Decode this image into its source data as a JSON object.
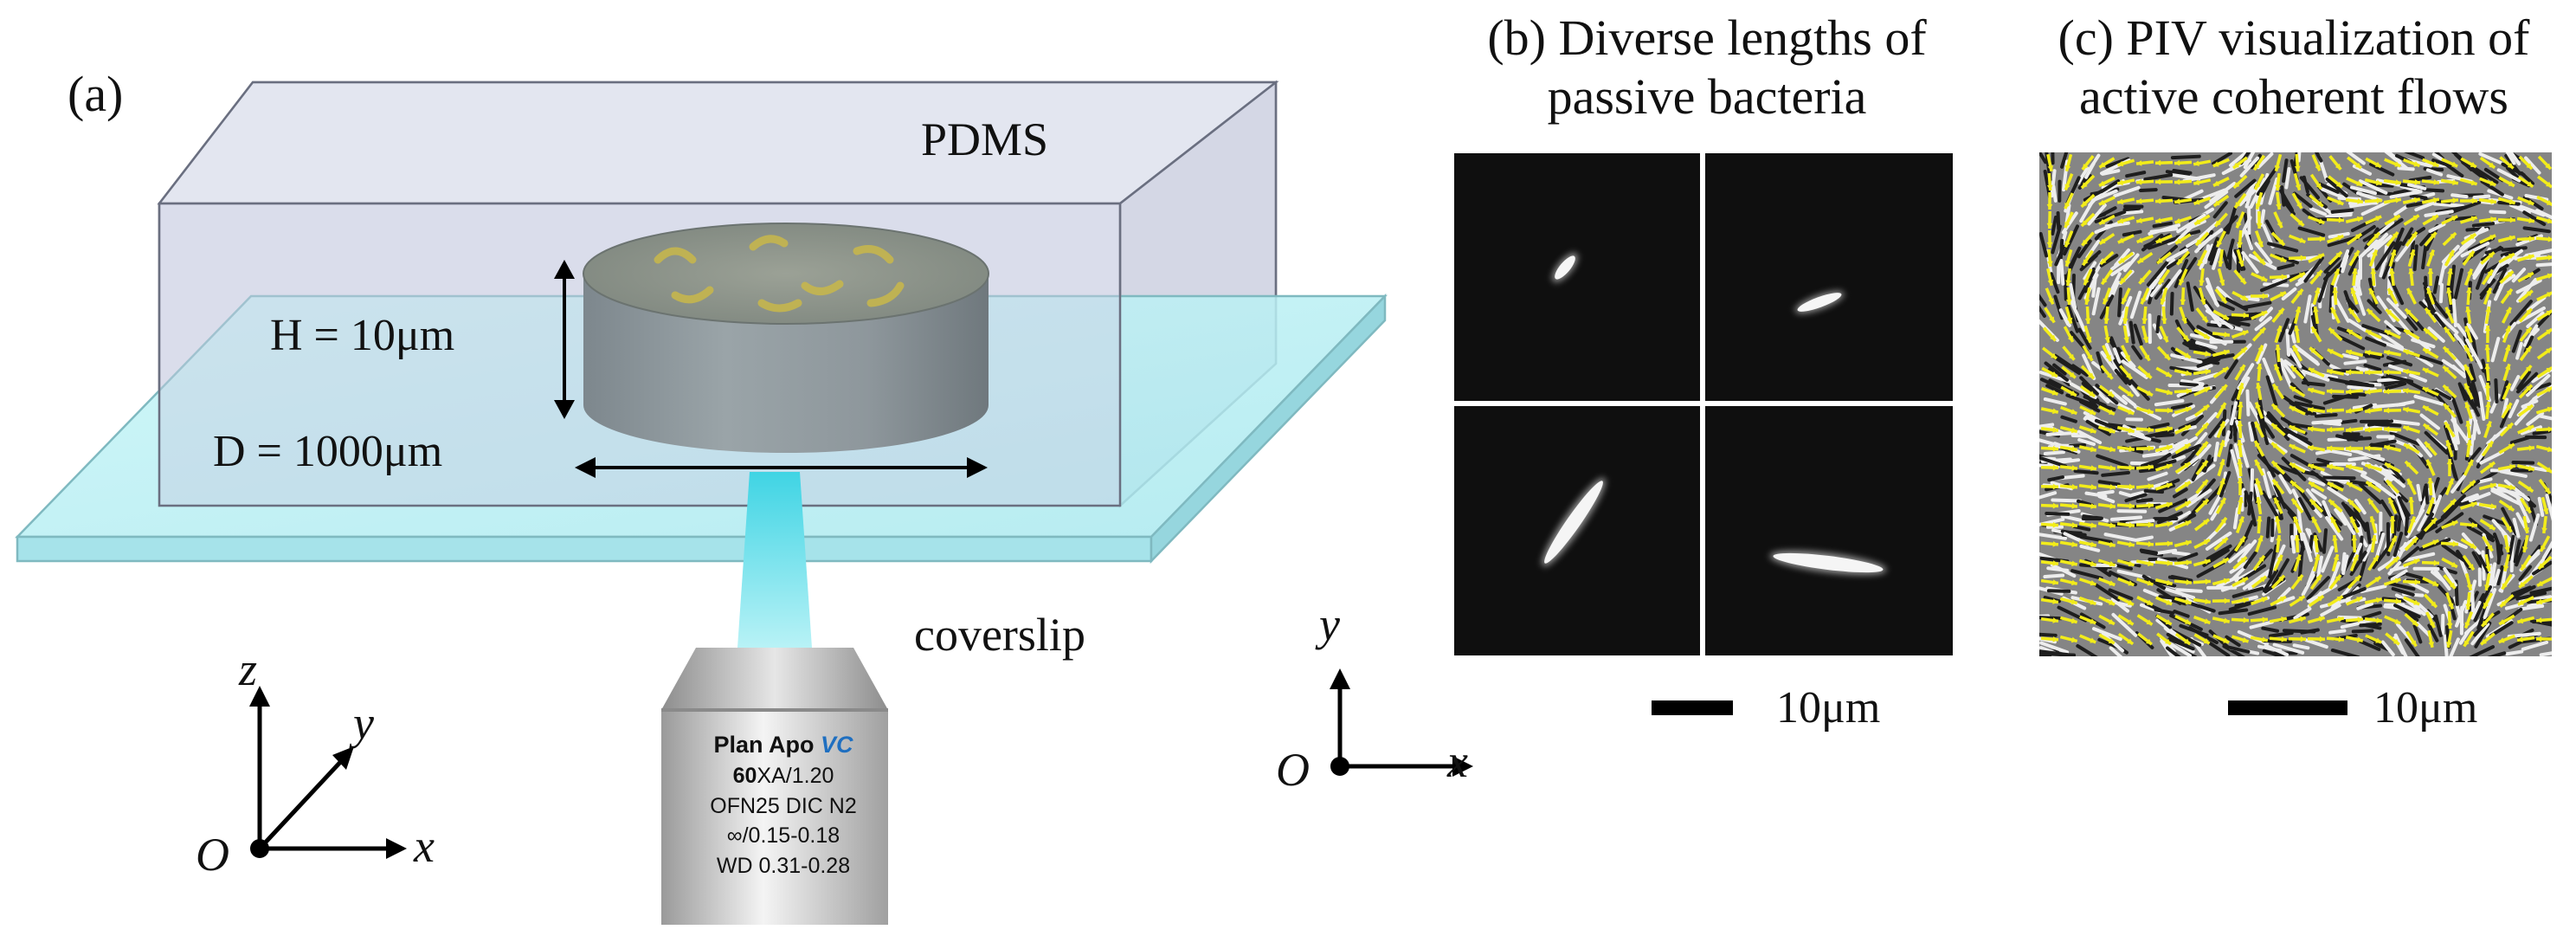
{
  "panel_a": {
    "label": "(a)",
    "pdms_label": "PDMS",
    "height_label": "H = 10μm",
    "diameter_label": "D = 1000μm",
    "coverslip_label": "coverslip",
    "axes": {
      "z": "z",
      "y": "y",
      "x": "x",
      "origin": "O"
    },
    "objective": {
      "line1_main": "Plan Apo ",
      "line1_accent": "VC",
      "line2_bold": "60",
      "line2_rest": "XA/1.20",
      "line3": "OFN25 DIC N2",
      "line4": "∞/0.15-0.18",
      "line5": "WD 0.31-0.28"
    }
  },
  "panel_b": {
    "title_line1": "(b) Diverse lengths of",
    "title_line2": "passive bacteria",
    "scale_bar": "10μm",
    "axes": {
      "y": "y",
      "x": "x",
      "origin": "O"
    }
  },
  "panel_c": {
    "title_line1": "(c) PIV visualization of",
    "title_line2": "active coherent flows",
    "scale_bar": "10μm"
  },
  "colors": {
    "arrow_yellow": "#f2ec1a",
    "coverslip": "#bff0f2",
    "pdms": "#c8cde0",
    "accent_blue": "#1f6fc0"
  }
}
